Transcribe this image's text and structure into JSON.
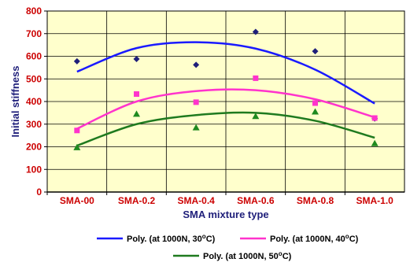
{
  "chart_data": {
    "type": "scatter",
    "categories": [
      "SMA-00",
      "SMA-0.2",
      "SMA-0.4",
      "SMA-0.6",
      "SMA-0.8",
      "SMA-1.0"
    ],
    "xlabel": "SMA mixture type",
    "ylabel": "Initial stiffness",
    "ylim": [
      0,
      800
    ],
    "yticks": [
      0,
      100,
      200,
      300,
      400,
      500,
      600,
      700,
      800
    ],
    "grid": true,
    "legend_position": "bottom",
    "plot_background": "#ffffcc",
    "series": [
      {
        "name": "at 1000N, 30°C",
        "marker": "diamond",
        "color": "#1f1f7a",
        "trend_color": "#1a1aff",
        "values": [
          578,
          588,
          562,
          708,
          622,
          325
        ],
        "trend_label": {
          "prefix": "Poly. (at 1000N, 30",
          "sup": "o",
          "suffix": "C)"
        },
        "trend": [
          532,
          636,
          662,
          634,
          541,
          391
        ]
      },
      {
        "name": "at 1000N, 40°C",
        "marker": "square",
        "color": "#ff33cc",
        "trend_color": "#ff33cc",
        "values": [
          272,
          433,
          397,
          503,
          393,
          327
        ],
        "trend_label": {
          "prefix": "Poly. (at 1000N, 40",
          "sup": "o",
          "suffix": "C)"
        },
        "trend": [
          280,
          400,
          446,
          450,
          410,
          330
        ]
      },
      {
        "name": "at 1000N, 50°C",
        "marker": "triangle",
        "color": "#1f8a1f",
        "trend_color": "#1f7a1f",
        "values": [
          197,
          345,
          285,
          335,
          355,
          215
        ],
        "trend_label": {
          "prefix": "Poly. (at 1000N, 50",
          "sup": "o",
          "suffix": "C)"
        },
        "trend": [
          205,
          300,
          340,
          350,
          315,
          240
        ]
      }
    ]
  }
}
